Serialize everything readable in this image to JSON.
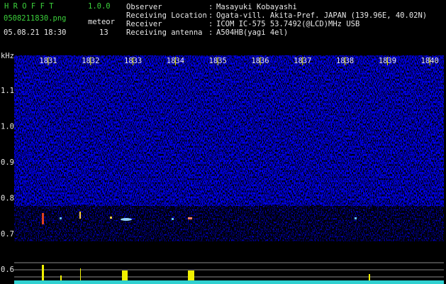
{
  "header": {
    "app": "H R O F F T",
    "version": "1.0.0",
    "file": "0508211830.png",
    "meteor_label": "meteor",
    "datetime": "05.08.21 18:30",
    "meteor_count": "13"
  },
  "separator": ":",
  "info": [
    {
      "label": "Observer",
      "value": "Masayuki Kobayashi"
    },
    {
      "label": "Receiving Location",
      "value": "Ogata-vill. Akita-Pref. JAPAN (139.96E, 40.02N)"
    },
    {
      "label": "Receiver",
      "value": "ICOM IC-575 53.7492(@LCD)MHz USB"
    },
    {
      "label": "Receiving antenna",
      "value": "A504HB(yagi 4el)"
    }
  ],
  "time_labels": [
    "1831",
    "1832",
    "1833",
    "1834",
    "1835",
    "1836",
    "1837",
    "1838",
    "1839",
    "1840"
  ],
  "freq_unit": "kHz",
  "freq_labels": [
    "1.1",
    "1.0",
    "0.9",
    "0.8",
    "0.7"
  ],
  "lower_label": "0.6"
}
